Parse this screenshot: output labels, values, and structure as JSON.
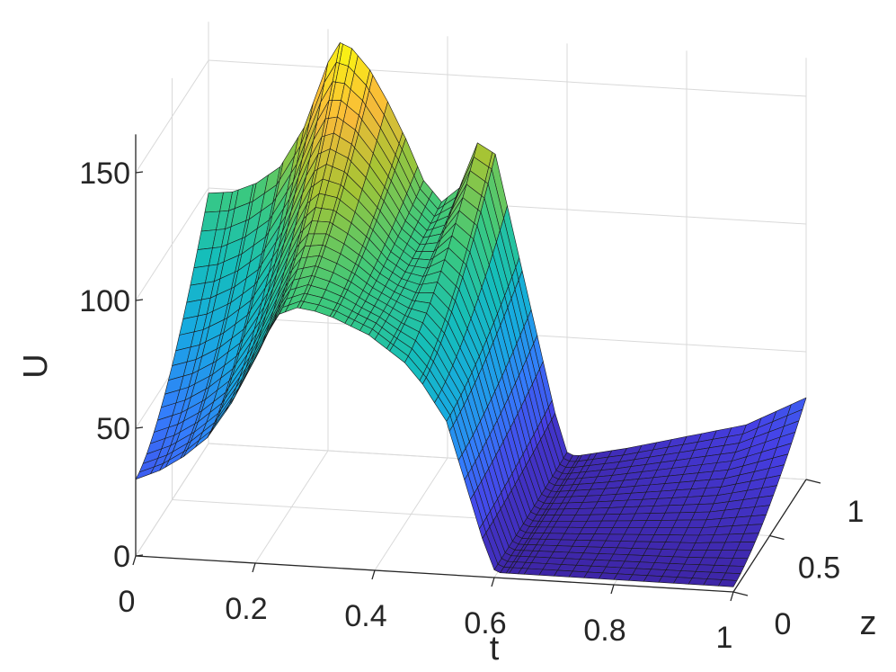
{
  "chart_data": {
    "type": "surface",
    "xlabel": "t",
    "ylabel": "z",
    "zlabel": "U",
    "xlim": [
      0,
      1
    ],
    "ylim": [
      0,
      1
    ],
    "zlim": [
      0,
      160
    ],
    "x_ticks": [
      0,
      0.2,
      0.4,
      0.6,
      0.8,
      1
    ],
    "x_tick_labels": [
      "0",
      "0.2",
      "0.4",
      "0.6",
      "0.8",
      "1"
    ],
    "y_ticks": [
      0,
      0.5,
      1
    ],
    "y_tick_labels": [
      "0",
      "0.5",
      "1"
    ],
    "z_ticks": [
      0,
      50,
      100,
      150
    ],
    "z_tick_labels": [
      "0",
      "50",
      "100",
      "150"
    ],
    "grid": true,
    "colormap": "parula",
    "surface_profile": {
      "t": [
        0,
        0.04,
        0.08,
        0.12,
        0.16,
        0.2,
        0.22,
        0.24,
        0.27,
        0.3,
        0.33,
        0.36,
        0.39,
        0.42,
        0.45,
        0.48,
        0.5,
        0.52,
        0.54,
        0.56,
        0.58,
        0.6,
        0.61,
        0.62,
        0.64,
        0.7,
        0.8,
        0.9,
        1.0
      ],
      "U_at_z0": [
        30,
        34,
        40,
        48,
        62,
        80,
        90,
        98,
        101,
        100,
        98,
        95,
        92,
        87,
        82,
        74,
        67,
        60,
        45,
        30,
        15,
        3,
        2,
        2,
        2,
        2,
        2,
        2,
        2
      ],
      "U_at_z1": [
        98,
        99,
        103,
        110,
        126,
        152,
        160,
        158,
        150,
        138,
        124,
        108,
        100,
        106,
        124,
        120,
        100,
        80,
        60,
        40,
        20,
        5,
        4,
        4,
        5,
        8,
        14,
        20,
        32
      ]
    }
  }
}
